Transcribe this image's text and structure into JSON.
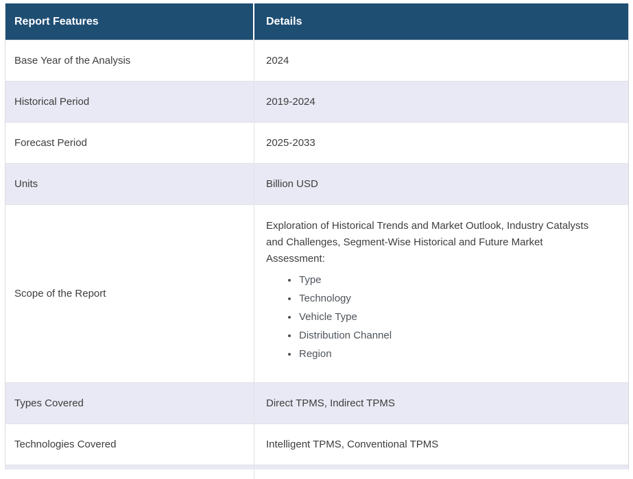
{
  "table": {
    "columns": [
      {
        "label": "Report Features"
      },
      {
        "label": "Details"
      }
    ],
    "rows": [
      {
        "feature": "Base Year of the Analysis",
        "details": "2024"
      },
      {
        "feature": "Historical Period",
        "details": "2019-2024"
      },
      {
        "feature": "Forecast Period",
        "details": "2025-2033"
      },
      {
        "feature": "Units",
        "details": "Billion USD"
      },
      {
        "feature": "Scope of the Report",
        "details_intro": "Exploration of Historical Trends and Market Outlook, Industry Catalysts and Challenges, Segment-Wise Historical and Future Market Assessment:",
        "details_bullets": [
          "Type",
          "Technology",
          "Vehicle Type",
          "Distribution Channel",
          "Region"
        ]
      },
      {
        "feature": "Types Covered",
        "details": "Direct TPMS, Indirect TPMS"
      },
      {
        "feature": "Technologies Covered",
        "details": "Intelligent TPMS, Conventional TPMS"
      }
    ],
    "colors": {
      "header_bg": "#1f4e73",
      "header_text": "#ffffff",
      "alt_row_bg": "#e8e9f4",
      "row_bg": "#ffffff",
      "border": "#e1e1e6",
      "body_text": "#3d3d3d"
    }
  }
}
